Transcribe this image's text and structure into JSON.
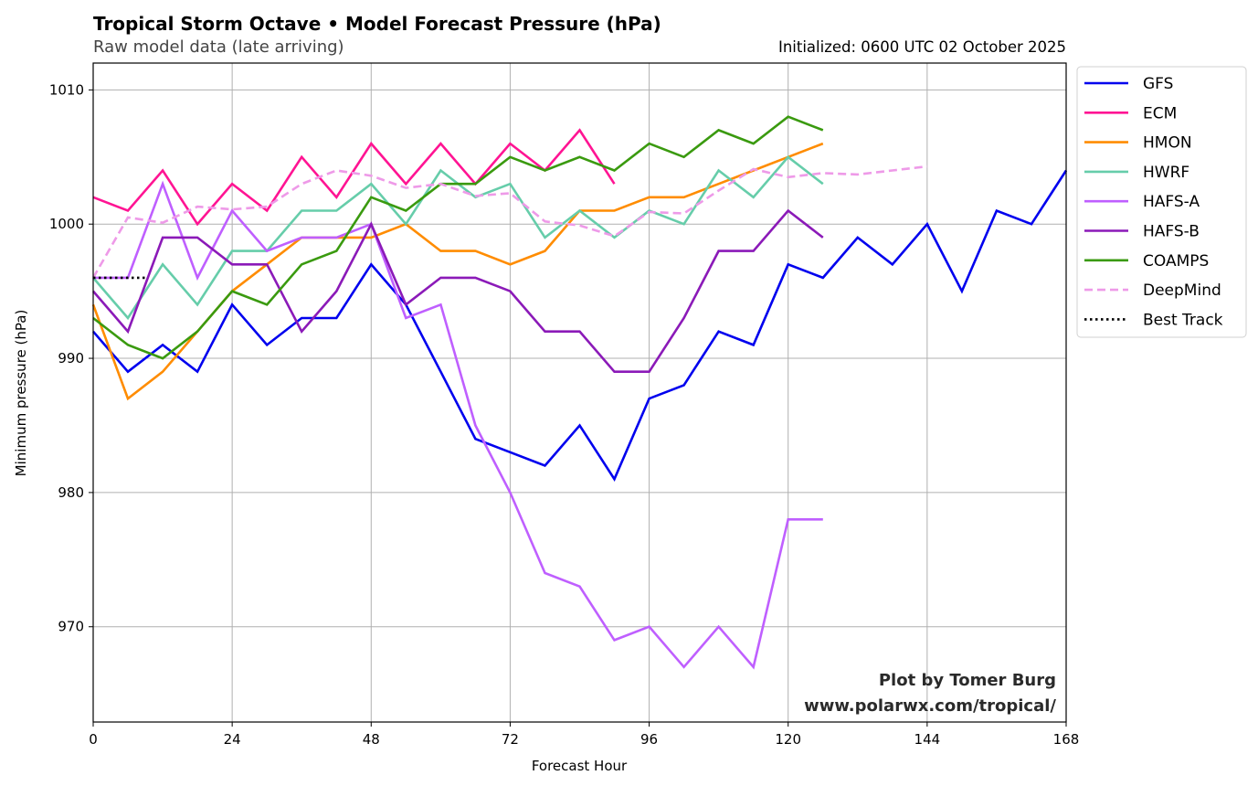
{
  "chart_data": {
    "type": "line",
    "title": "Tropical Storm Octave • Model Forecast Pressure (hPa)",
    "subtitle": "Raw model data (late arriving)",
    "initialized": "Initialized: 0600 UTC 02 October 2025",
    "xlabel": "Forecast Hour",
    "ylabel": "Minimum pressure (hPa)",
    "xlim": [
      0,
      168
    ],
    "ylim": [
      962.9,
      1012.0
    ],
    "xticks": [
      0,
      24,
      48,
      72,
      96,
      120,
      144,
      168
    ],
    "yticks": [
      970,
      980,
      990,
      1000,
      1010
    ],
    "grid": true,
    "legend_position": "outside-top-right",
    "credit": [
      "Plot by Tomer Burg",
      "www.polarwx.com/tropical/"
    ],
    "series": [
      {
        "name": "GFS",
        "color": "#0000ee",
        "style": "solid",
        "x": [
          0,
          6,
          12,
          18,
          24,
          30,
          36,
          42,
          48,
          54,
          60,
          66,
          72,
          78,
          84,
          90,
          96,
          102,
          108,
          114,
          120,
          126,
          132,
          138,
          144,
          150,
          156,
          162,
          168
        ],
        "values": [
          992,
          989,
          991,
          989,
          994,
          991,
          993,
          993,
          997,
          994,
          989,
          984,
          983,
          982,
          985,
          981,
          987,
          988,
          992,
          991,
          997,
          996,
          999,
          997,
          1000,
          995,
          1001,
          1000,
          1004
        ]
      },
      {
        "name": "ECM",
        "color": "#ff1493",
        "style": "solid",
        "x": [
          0,
          6,
          12,
          18,
          24,
          30,
          36,
          42,
          48,
          54,
          60,
          66,
          72,
          78,
          84,
          90
        ],
        "values": [
          1002,
          1001,
          1004,
          1000,
          1003,
          1001,
          1005,
          1002,
          1006,
          1003,
          1006,
          1003,
          1006,
          1004,
          1007,
          1003
        ]
      },
      {
        "name": "HMON",
        "color": "#ff8c00",
        "style": "solid",
        "x": [
          0,
          6,
          12,
          18,
          24,
          30,
          36,
          42,
          48,
          54,
          60,
          66,
          72,
          78,
          84,
          90,
          96,
          102,
          108,
          114,
          120,
          126
        ],
        "values": [
          994,
          987,
          989,
          992,
          995,
          997,
          999,
          999,
          999,
          1000,
          998,
          998,
          997,
          998,
          1001,
          1001,
          1002,
          1002,
          1003,
          1004,
          1005,
          1006
        ]
      },
      {
        "name": "HWRF",
        "color": "#66cdaa",
        "style": "solid",
        "x": [
          0,
          6,
          12,
          18,
          24,
          30,
          36,
          42,
          48,
          54,
          60,
          66,
          72,
          78,
          84,
          90,
          96,
          102,
          108,
          114,
          120,
          126
        ],
        "values": [
          996,
          993,
          997,
          994,
          998,
          998,
          1001,
          1001,
          1003,
          1000,
          1004,
          1002,
          1003,
          999,
          1001,
          999,
          1001,
          1000,
          1004,
          1002,
          1005,
          1003
        ]
      },
      {
        "name": "HAFS-A",
        "color": "#bf5fff",
        "style": "solid",
        "x": [
          0,
          6,
          12,
          18,
          24,
          30,
          36,
          42,
          48,
          54,
          60,
          66,
          72,
          78,
          84,
          90,
          96,
          102,
          108,
          114,
          120,
          126
        ],
        "values": [
          996,
          996,
          1003,
          996,
          1001,
          998,
          999,
          999,
          1000,
          993,
          994,
          985,
          980,
          974,
          973,
          969,
          970,
          967,
          970,
          967,
          978,
          978
        ]
      },
      {
        "name": "HAFS-B",
        "color": "#8b1ab8",
        "style": "solid",
        "x": [
          0,
          6,
          12,
          18,
          24,
          30,
          36,
          42,
          48,
          54,
          60,
          66,
          72,
          78,
          84,
          90,
          96,
          102,
          108,
          114,
          120,
          126
        ],
        "values": [
          995,
          992,
          999,
          999,
          997,
          997,
          992,
          995,
          1000,
          994,
          996,
          996,
          995,
          992,
          992,
          989,
          989,
          993,
          998,
          998,
          1001,
          999
        ]
      },
      {
        "name": "COAMPS",
        "color": "#3a9a0f",
        "style": "solid",
        "x": [
          0,
          6,
          12,
          18,
          24,
          30,
          36,
          42,
          48,
          54,
          60,
          66,
          72,
          78,
          84,
          90,
          96,
          102,
          108,
          114,
          120,
          126
        ],
        "values": [
          993,
          991,
          990,
          992,
          995,
          994,
          997,
          998,
          1002,
          1001,
          1003,
          1003,
          1005,
          1004,
          1005,
          1004,
          1006,
          1005,
          1007,
          1006,
          1008,
          1007
        ]
      },
      {
        "name": "DeepMind",
        "color": "#ee9ae8",
        "style": "dashed",
        "x": [
          0,
          6,
          12,
          18,
          24,
          30,
          36,
          42,
          48,
          54,
          60,
          66,
          72,
          78,
          84,
          90,
          96,
          102,
          108,
          114,
          120,
          126,
          132,
          138,
          144
        ],
        "values": [
          996,
          1000.5,
          1000.1,
          1001.3,
          1001.1,
          1001.3,
          1003.0,
          1004.0,
          1003.6,
          1002.7,
          1003.0,
          1002.1,
          1002.3,
          1000.2,
          999.9,
          999.1,
          1000.9,
          1000.8,
          1002.5,
          1004.1,
          1003.5,
          1003.8,
          1003.7,
          1004.0,
          1004.3
        ]
      },
      {
        "name": "Best Track",
        "color": "#000000",
        "style": "dotted",
        "x": [
          0,
          9
        ],
        "values": [
          996,
          996
        ]
      }
    ]
  }
}
